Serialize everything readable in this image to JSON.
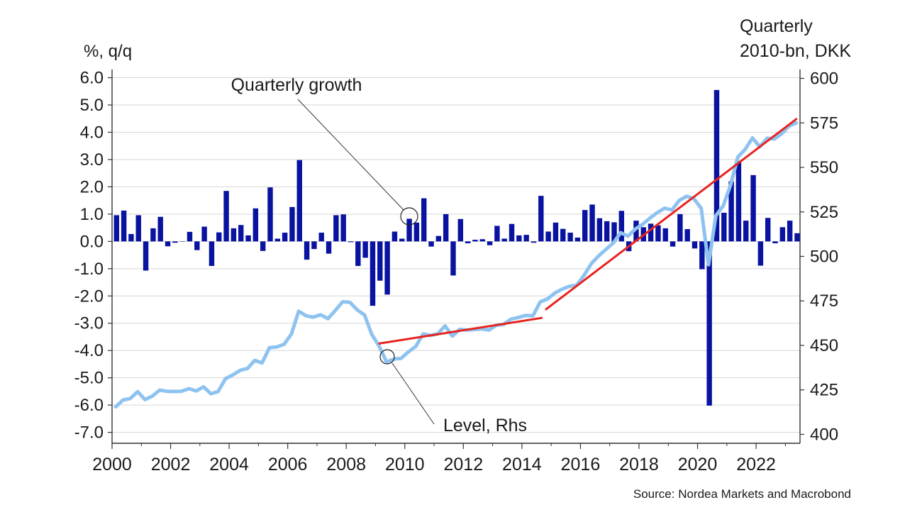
{
  "chart_data": {
    "type": "bar+line",
    "left_axis_label": "%, q/q",
    "right_axis_label_line1": "Quarterly",
    "right_axis_label_line2": "2010-bn, DKK",
    "source": "Source: Nordea Markets and Macrobond",
    "annotations": {
      "growth": "Quarterly growth",
      "level": "Level, Rhs"
    },
    "x_ticks": [
      "2000",
      "2002",
      "2004",
      "2006",
      "2008",
      "2010",
      "2012",
      "2014",
      "2016",
      "2018",
      "2020",
      "2022"
    ],
    "y_left_ticks": [
      "6.0",
      "5.0",
      "4.0",
      "3.0",
      "2.0",
      "1.0",
      "0.0",
      "-1.0",
      "-2.0",
      "-3.0",
      "-4.0",
      "-5.0",
      "-6.0",
      "-7.0"
    ],
    "y_right_ticks": [
      "600",
      "575",
      "550",
      "525",
      "500",
      "475",
      "450",
      "425",
      "400"
    ],
    "ylim_left": [
      -7.4,
      6.3
    ],
    "ylim_right": [
      395,
      605
    ],
    "xlim": [
      2000,
      2023.5
    ],
    "start_year": 2000,
    "series": [
      {
        "name": "Quarterly growth",
        "axis": "left",
        "kind": "bar",
        "color": "#0a13a0",
        "values": [
          0.96,
          1.13,
          0.27,
          0.96,
          -1.07,
          0.48,
          0.9,
          -0.18,
          -0.05,
          0.0,
          0.35,
          -0.32,
          0.54,
          -0.9,
          0.33,
          1.85,
          0.48,
          0.6,
          0.22,
          1.21,
          -0.35,
          1.98,
          0.1,
          0.32,
          1.26,
          2.98,
          -0.67,
          -0.28,
          0.32,
          -0.45,
          0.96,
          0.99,
          -0.03,
          -0.9,
          -0.6,
          -2.36,
          -1.44,
          -1.95,
          0.36,
          0.1,
          0.83,
          0.69,
          1.58,
          -0.19,
          0.2,
          1.0,
          -1.25,
          0.82,
          -0.07,
          0.06,
          0.08,
          -0.14,
          0.57,
          0.1,
          0.64,
          0.22,
          0.24,
          -0.05,
          1.67,
          0.36,
          0.69,
          0.46,
          0.32,
          0.14,
          1.15,
          1.35,
          0.85,
          0.74,
          0.7,
          1.12,
          -0.36,
          0.76,
          0.52,
          0.65,
          0.59,
          0.48,
          -0.19,
          1.0,
          0.45,
          -0.26,
          -1.02,
          -6.02,
          5.55,
          1.05,
          2.2,
          2.95,
          0.76,
          2.43,
          -0.89,
          0.86,
          -0.07,
          0.52,
          0.76,
          0.3
        ]
      },
      {
        "name": "Level, Rhs",
        "axis": "right",
        "kind": "line",
        "color": "#8ec3f0",
        "values": [
          415.5,
          419.3,
          420.2,
          424.0,
          419.6,
          421.5,
          424.9,
          424.2,
          424.1,
          424.2,
          425.7,
          424.4,
          426.7,
          422.8,
          424.1,
          431.3,
          433.4,
          436.0,
          437.0,
          441.6,
          440.1,
          448.7,
          449.1,
          450.6,
          456.3,
          469.2,
          466.6,
          465.9,
          467.2,
          465.0,
          469.6,
          474.5,
          474.2,
          469.9,
          467.1,
          456.1,
          449.5,
          440.7,
          442.3,
          442.7,
          446.4,
          449.4,
          456.4,
          455.6,
          456.5,
          461.0,
          455.2,
          459.0,
          458.6,
          458.9,
          459.3,
          458.6,
          461.3,
          461.8,
          464.7,
          465.7,
          466.8,
          466.6,
          474.4,
          476.1,
          479.4,
          481.6,
          483.2,
          483.9,
          489.4,
          496.0,
          500.3,
          504.0,
          507.6,
          513.3,
          511.4,
          515.4,
          518.1,
          521.5,
          524.6,
          527.1,
          526.1,
          531.4,
          533.8,
          532.4,
          527.0,
          495.3,
          522.8,
          528.3,
          539.9,
          555.8,
          560.1,
          566.6,
          561.6,
          566.4,
          566.0,
          568.9,
          573.2,
          575.0
        ]
      }
    ],
    "trend_lines": [
      {
        "name": "trend-2009-2014",
        "color": "#e8231f",
        "from": {
          "x": 2009.1,
          "y": 451.0
        },
        "to": {
          "x": 2014.7,
          "y": 465.5
        }
      },
      {
        "name": "trend-2014-2023",
        "color": "#e8231f",
        "from": {
          "x": 2014.8,
          "y": 470.0
        },
        "to": {
          "x": 2023.4,
          "y": 577.5
        }
      }
    ]
  }
}
